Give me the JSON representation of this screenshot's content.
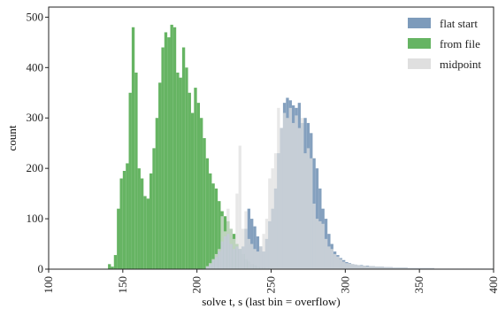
{
  "chart_data": {
    "type": "bar",
    "title": "",
    "xlabel": "solve t, s (last bin = overflow)",
    "ylabel": "count",
    "xlim": [
      100,
      400
    ],
    "ylim": [
      0,
      520
    ],
    "bin_width": 2,
    "grid": false,
    "legend_position": "top-right",
    "x_ticks": [
      "100",
      "150",
      "200",
      "250",
      "300",
      "350",
      "400"
    ],
    "y_ticks": [
      "0",
      "100",
      "200",
      "300",
      "400",
      "500"
    ],
    "colors": {
      "flat start": "#7d9bbb",
      "from file": "#66b463",
      "midpoint": "#dfdfdf"
    },
    "series": [
      {
        "name": "from file",
        "bin_edges_start": 140,
        "values": [
          10,
          5,
          28,
          120,
          180,
          195,
          210,
          350,
          480,
          390,
          200,
          180,
          145,
          140,
          190,
          240,
          300,
          370,
          440,
          470,
          460,
          485,
          480,
          390,
          380,
          440,
          400,
          350,
          310,
          360,
          330,
          300,
          260,
          220,
          190,
          170,
          160,
          135,
          115,
          105,
          95,
          80,
          70,
          50,
          40,
          30,
          20,
          15,
          10,
          8,
          5,
          4,
          3,
          2,
          2,
          1,
          1,
          1,
          0,
          0,
          0,
          0,
          0,
          0,
          0
        ]
      },
      {
        "name": "flat start",
        "bin_edges_start": 206,
        "values": [
          5,
          10,
          18,
          24,
          35,
          55,
          65,
          70,
          50,
          40,
          45,
          40,
          45,
          80,
          120,
          100,
          85,
          65,
          45,
          35,
          60,
          95,
          120,
          160,
          230,
          280,
          330,
          340,
          335,
          325,
          320,
          330,
          290,
          300,
          290,
          270,
          220,
          200,
          160,
          120,
          100,
          70,
          50,
          35,
          28,
          22,
          18,
          14,
          12,
          10,
          9,
          8,
          8,
          7,
          7,
          6,
          6,
          5,
          5,
          5,
          4,
          4,
          4,
          3,
          3,
          3,
          3,
          3,
          2,
          2,
          2,
          2,
          2,
          2,
          2,
          2,
          2,
          1,
          1,
          1,
          1,
          1,
          1,
          1,
          1,
          1,
          1,
          1,
          1,
          1,
          1,
          1,
          1,
          1,
          1,
          1,
          1
        ]
      },
      {
        "name": "midpoint",
        "bin_edges_start": 206,
        "values": [
          6,
          12,
          20,
          30,
          40,
          105,
          75,
          120,
          80,
          60,
          150,
          245,
          80,
          115,
          60,
          50,
          40,
          35,
          45,
          70,
          100,
          180,
          200,
          230,
          320,
          280,
          310,
          300,
          320,
          290,
          305,
          280,
          300,
          230,
          240,
          220,
          130,
          100,
          95,
          90,
          60,
          45,
          40,
          30,
          25,
          20,
          15,
          12,
          11,
          10,
          9,
          8,
          7,
          7,
          6,
          6,
          6,
          5,
          5,
          5,
          4,
          4,
          4,
          3,
          3,
          3,
          3,
          3,
          2,
          2,
          2,
          2,
          2,
          2,
          2,
          2,
          2,
          1,
          1,
          1,
          1,
          1,
          1,
          1,
          1,
          1,
          1,
          1,
          1,
          1,
          1,
          1,
          1,
          1,
          1,
          1,
          1
        ]
      }
    ]
  }
}
